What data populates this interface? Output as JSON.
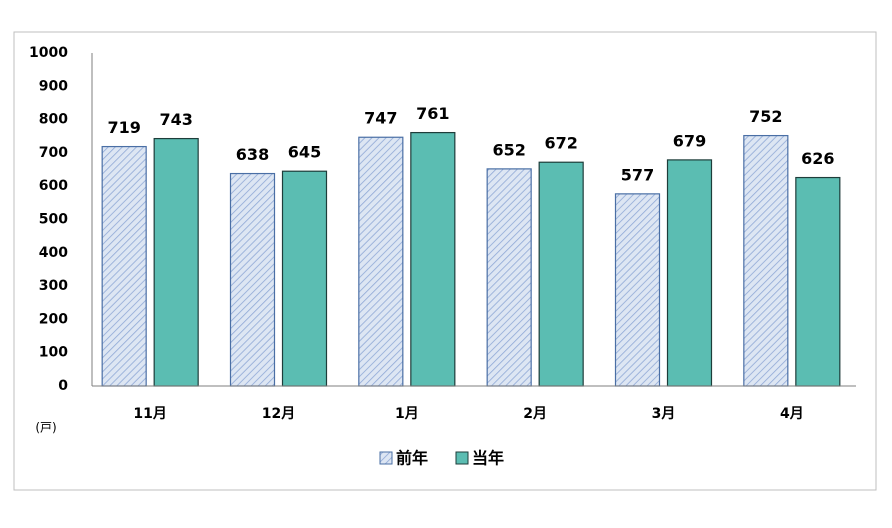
{
  "chart_data": {
    "type": "bar",
    "y_unit": "(戸)",
    "categories": [
      "11月",
      "12月",
      "1月",
      "2月",
      "3月",
      "4月"
    ],
    "series": [
      {
        "name": "前年",
        "color": "#dde6f3",
        "stroke": "#4a6fa5",
        "hatched": true,
        "values": [
          719,
          638,
          747,
          652,
          577,
          752
        ]
      },
      {
        "name": "当年",
        "color": "#5bbdb2",
        "stroke": "#1e3d3a",
        "hatched": false,
        "values": [
          743,
          645,
          761,
          672,
          679,
          626
        ]
      }
    ],
    "ylim": [
      0,
      1000
    ],
    "yticks": [
      0,
      100,
      200,
      300,
      400,
      500,
      600,
      700,
      800,
      900,
      1000
    ],
    "grid": false,
    "legend": "bottom"
  }
}
